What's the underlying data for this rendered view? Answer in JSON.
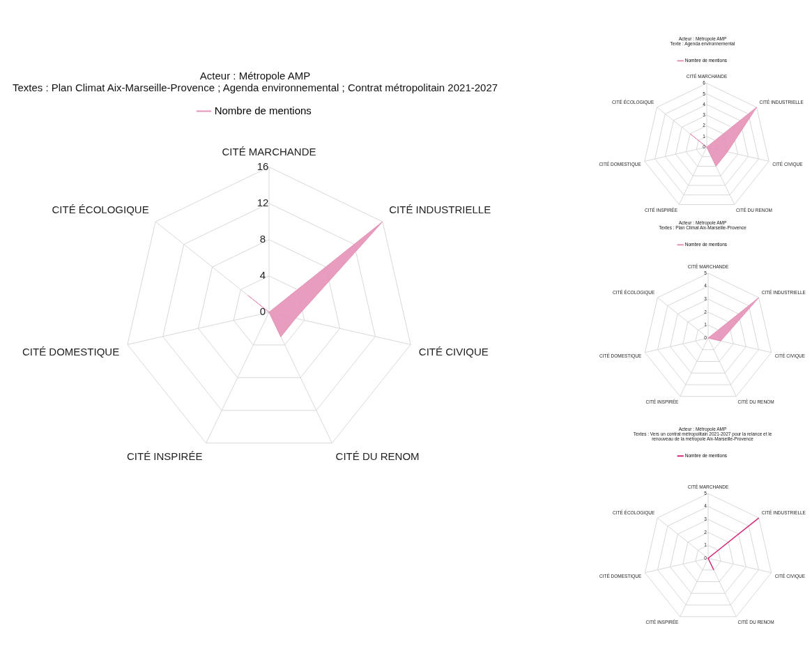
{
  "chart_data": [
    {
      "type": "radar",
      "title": "Acteur : Métropole AMP",
      "subtitle": "Textes : Plan Climat Aix-Marseille-Provence ; Agenda environnemental ; Contrat métropolitain 2021-2027",
      "categories": [
        "CITÉ MARCHANDE",
        "CITÉ INDUSTRIELLE",
        "CITÉ CIVIQUE",
        "CITÉ DU RENOM",
        "CITÉ INSPIRÉE",
        "CITÉ DOMESTIQUE",
        "CITÉ ÉCOLOGIQUE"
      ],
      "series": [
        {
          "name": "Nombre de mentions",
          "type": "area",
          "color": "#e592b8",
          "values": [
            0,
            16,
            3,
            3,
            0,
            0,
            3
          ]
        }
      ],
      "ylim": [
        0,
        16
      ],
      "yticks": [
        0,
        4,
        8,
        12,
        16
      ],
      "grid": true,
      "legend": "top",
      "marker": "none"
    },
    {
      "type": "radar",
      "title": "Acteur : Métropole AMP",
      "subtitle": "Texte : Agenda environnemental",
      "categories": [
        "CITÉ MARCHANDE",
        "CITÉ INDUSTRIELLE",
        "CITÉ CIVIQUE",
        "CITÉ DU RENOM",
        "CITÉ INSPIRÉE",
        "CITÉ DOMESTIQUE",
        "CITÉ ÉCOLOGIQUE"
      ],
      "series": [
        {
          "name": "Nombre de mentions",
          "type": "area",
          "color": "#e592b8",
          "values": [
            0,
            6,
            2,
            2,
            0,
            0,
            2
          ]
        }
      ],
      "ylim": [
        0,
        6
      ],
      "yticks": [
        0,
        1,
        2,
        3,
        4,
        5,
        6
      ],
      "grid": true,
      "legend": "top",
      "marker": "none"
    },
    {
      "type": "radar",
      "title": "Acteur : Métropole AMP",
      "subtitle": "Textes : Plan Climat Aix-Marseille-Provence",
      "categories": [
        "CITÉ MARCHANDE",
        "CITÉ INDUSTRIELLE",
        "CITÉ CIVIQUE",
        "CITÉ DU RENOM",
        "CITÉ INSPIRÉE",
        "CITÉ DOMESTIQUE",
        "CITÉ ÉCOLOGIQUE"
      ],
      "series": [
        {
          "name": "Nombre de mentions",
          "type": "area",
          "color": "#e592b8",
          "values": [
            0,
            5,
            1,
            0,
            0,
            0,
            0
          ]
        }
      ],
      "ylim": [
        0,
        5
      ],
      "yticks": [
        0,
        1,
        2,
        3,
        4,
        5
      ],
      "grid": true,
      "legend": "top",
      "marker": "none"
    },
    {
      "type": "radar",
      "title": "Acteur : Métropole AMP",
      "subtitle": "Textes : Vers un contrat métropolitain 2021-2027 pour la relance et le renouveau de la métropole Aix-Marseille-Provence",
      "categories": [
        "CITÉ MARCHANDE",
        "CITÉ INDUSTRIELLE",
        "CITÉ CIVIQUE",
        "CITÉ DU RENOM",
        "CITÉ INSPIRÉE",
        "CITÉ DOMESTIQUE",
        "CITÉ ÉCOLOGIQUE"
      ],
      "series": [
        {
          "name": "Nombre de mentions",
          "color": "#d6287a",
          "values": [
            0,
            5,
            0,
            1,
            0,
            0,
            0
          ]
        }
      ],
      "ylim": [
        0,
        5
      ],
      "yticks": [
        0,
        1,
        2,
        3,
        4,
        5
      ],
      "grid": true,
      "legend": "top",
      "marker": "none"
    }
  ]
}
